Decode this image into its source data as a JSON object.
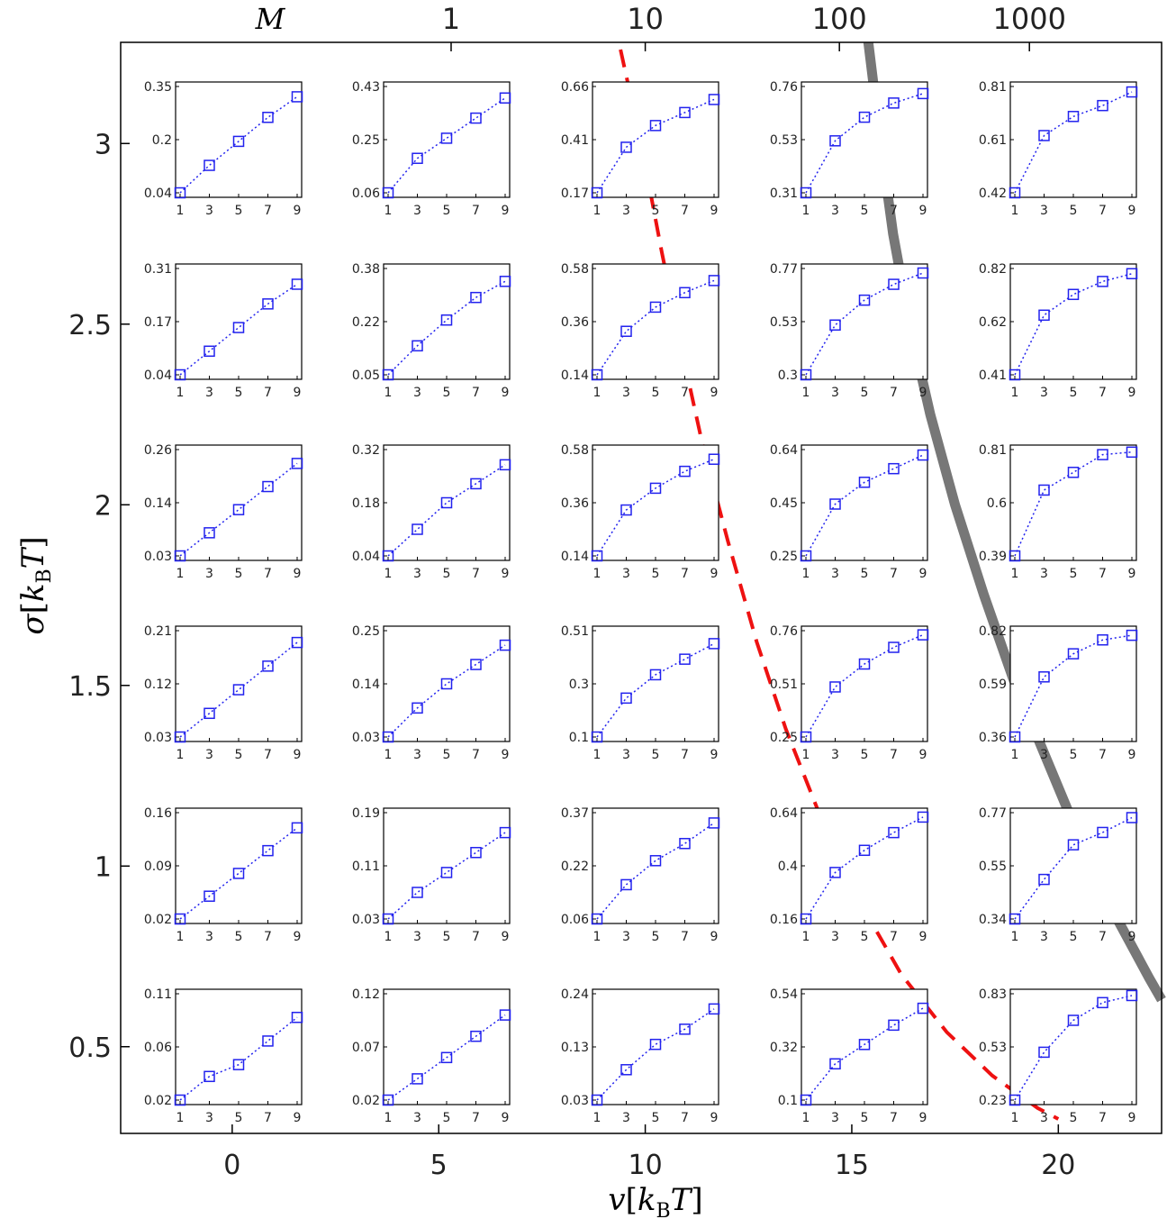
{
  "chart_data": {
    "type": "line",
    "main": {
      "xlabel": {
        "var": "v",
        "open": "[",
        "k": "k",
        "sub": "B",
        "T": "T",
        "close": "]"
      },
      "ylabel": {
        "var": "σ",
        "open": "[",
        "k": "k",
        "sub": "B",
        "T": "T",
        "close": "]"
      },
      "x_ticks": [
        0,
        5,
        10,
        15,
        20
      ],
      "x_tick_labels": [
        "0",
        "5",
        "10",
        "15",
        "20"
      ],
      "y_ticks": [
        0.5,
        1,
        1.5,
        2,
        2.5,
        3
      ],
      "y_tick_labels": [
        "0.5",
        "1",
        "1.5",
        "2",
        "2.5",
        "3"
      ],
      "xlim": [
        -2.7,
        22.5
      ],
      "ylim": [
        0.26,
        3.28
      ],
      "top_axis": {
        "label": "M",
        "tick_x": [
          5.3,
          10,
          14.7,
          19.3
        ],
        "tick_labels": [
          "1",
          "10",
          "100",
          "1000"
        ]
      },
      "curves": [
        {
          "style": "dashed",
          "color": "#ee1111",
          "x": [
            9.4,
            9.9,
            10.4,
            10.9,
            11.4,
            12.0,
            12.7,
            13.4,
            14.3,
            15.2,
            16.2,
            17.3,
            18.4,
            19.5,
            20.0
          ],
          "y": [
            3.26,
            3.0,
            2.7,
            2.42,
            2.16,
            1.9,
            1.62,
            1.38,
            1.12,
            0.9,
            0.7,
            0.54,
            0.42,
            0.33,
            0.3
          ]
        },
        {
          "style": "solid",
          "color": "#777777",
          "x": [
            15.4,
            15.7,
            16.0,
            16.4,
            16.9,
            17.5,
            18.2,
            18.9,
            19.7,
            20.5,
            21.3,
            22.2,
            22.5
          ],
          "y": [
            3.28,
            3.0,
            2.75,
            2.5,
            2.25,
            2.0,
            1.75,
            1.52,
            1.3,
            1.08,
            0.88,
            0.69,
            0.63
          ]
        }
      ]
    },
    "insets": {
      "x_ticks": [
        1,
        3,
        5,
        7,
        9
      ],
      "x_tick_labels": [
        "1",
        "3",
        "5",
        "7",
        "9"
      ],
      "marker": "square",
      "line": "dotted",
      "color": "#2222ee",
      "v_values": [
        0,
        5,
        10,
        15,
        20
      ],
      "sigma_rows": [
        3,
        2.5,
        2,
        1.5,
        1,
        0.5
      ],
      "panels": [
        [
          {
            "ylim": [
              0.04,
              0.35
            ],
            "yticks": [
              "0.04",
              "0.2",
              "0.35"
            ],
            "y": [
              0.04,
              0.12,
              0.19,
              0.26,
              0.32
            ]
          },
          {
            "ylim": [
              0.06,
              0.43
            ],
            "yticks": [
              "0.06",
              "0.25",
              "0.43"
            ],
            "y": [
              0.06,
              0.18,
              0.25,
              0.32,
              0.39
            ]
          },
          {
            "ylim": [
              0.17,
              0.66
            ],
            "yticks": [
              "0.17",
              "0.41",
              "0.66"
            ],
            "y": [
              0.17,
              0.38,
              0.48,
              0.54,
              0.6
            ]
          },
          {
            "ylim": [
              0.31,
              0.76
            ],
            "yticks": [
              "0.31",
              "0.53",
              "0.76"
            ],
            "y": [
              0.31,
              0.53,
              0.63,
              0.69,
              0.73
            ]
          },
          {
            "ylim": [
              0.42,
              0.81
            ],
            "yticks": [
              "0.42",
              "0.61",
              "0.81"
            ],
            "y": [
              0.42,
              0.63,
              0.7,
              0.74,
              0.79
            ]
          }
        ],
        [
          {
            "ylim": [
              0.04,
              0.31
            ],
            "yticks": [
              "0.04",
              "0.17",
              "0.31"
            ],
            "y": [
              0.04,
              0.1,
              0.16,
              0.22,
              0.27
            ]
          },
          {
            "ylim": [
              0.05,
              0.38
            ],
            "yticks": [
              "0.05",
              "0.22",
              "0.38"
            ],
            "y": [
              0.05,
              0.14,
              0.22,
              0.29,
              0.34
            ]
          },
          {
            "ylim": [
              0.14,
              0.58
            ],
            "yticks": [
              "0.14",
              "0.36",
              "0.58"
            ],
            "y": [
              0.14,
              0.32,
              0.42,
              0.48,
              0.53
            ]
          },
          {
            "ylim": [
              0.3,
              0.77
            ],
            "yticks": [
              "0.3",
              "0.53",
              "0.77"
            ],
            "y": [
              0.3,
              0.52,
              0.63,
              0.7,
              0.75
            ]
          },
          {
            "ylim": [
              0.41,
              0.82
            ],
            "yticks": [
              "0.41",
              "0.62",
              "0.82"
            ],
            "y": [
              0.41,
              0.64,
              0.72,
              0.77,
              0.8
            ]
          }
        ],
        [
          {
            "ylim": [
              0.03,
              0.26
            ],
            "yticks": [
              "0.03",
              "0.14",
              "0.26"
            ],
            "y": [
              0.03,
              0.08,
              0.13,
              0.18,
              0.23
            ]
          },
          {
            "ylim": [
              0.04,
              0.32
            ],
            "yticks": [
              "0.04",
              "0.18",
              "0.32"
            ],
            "y": [
              0.04,
              0.11,
              0.18,
              0.23,
              0.28
            ]
          },
          {
            "ylim": [
              0.14,
              0.58
            ],
            "yticks": [
              "0.14",
              "0.36",
              "0.58"
            ],
            "y": [
              0.14,
              0.33,
              0.42,
              0.49,
              0.54
            ]
          },
          {
            "ylim": [
              0.25,
              0.64
            ],
            "yticks": [
              "0.25",
              "0.45",
              "0.64"
            ],
            "y": [
              0.25,
              0.44,
              0.52,
              0.57,
              0.62
            ]
          },
          {
            "ylim": [
              0.39,
              0.81
            ],
            "yticks": [
              "0.39",
              "0.6",
              "0.81"
            ],
            "y": [
              0.39,
              0.65,
              0.72,
              0.79,
              0.8
            ]
          }
        ],
        [
          {
            "ylim": [
              0.03,
              0.21
            ],
            "yticks": [
              "0.03",
              "0.12",
              "0.21"
            ],
            "y": [
              0.03,
              0.07,
              0.11,
              0.15,
              0.19
            ]
          },
          {
            "ylim": [
              0.03,
              0.25
            ],
            "yticks": [
              "0.03",
              "0.14",
              "0.25"
            ],
            "y": [
              0.03,
              0.09,
              0.14,
              0.18,
              0.22
            ]
          },
          {
            "ylim": [
              0.1,
              0.51
            ],
            "yticks": [
              "0.1",
              "0.3",
              "0.51"
            ],
            "y": [
              0.1,
              0.25,
              0.34,
              0.4,
              0.46
            ]
          },
          {
            "ylim": [
              0.25,
              0.76
            ],
            "yticks": [
              "0.25",
              "0.51",
              "0.76"
            ],
            "y": [
              0.25,
              0.49,
              0.6,
              0.68,
              0.74
            ]
          },
          {
            "ylim": [
              0.36,
              0.82
            ],
            "yticks": [
              "0.36",
              "0.59",
              "0.82"
            ],
            "y": [
              0.36,
              0.62,
              0.72,
              0.78,
              0.8
            ]
          }
        ],
        [
          {
            "ylim": [
              0.02,
              0.16
            ],
            "yticks": [
              "0.02",
              "0.09",
              "0.16"
            ],
            "y": [
              0.02,
              0.05,
              0.08,
              0.11,
              0.14
            ]
          },
          {
            "ylim": [
              0.03,
              0.19
            ],
            "yticks": [
              "0.03",
              "0.11",
              "0.19"
            ],
            "y": [
              0.03,
              0.07,
              0.1,
              0.13,
              0.16
            ]
          },
          {
            "ylim": [
              0.06,
              0.37
            ],
            "yticks": [
              "0.06",
              "0.22",
              "0.37"
            ],
            "y": [
              0.06,
              0.16,
              0.23,
              0.28,
              0.34
            ]
          },
          {
            "ylim": [
              0.16,
              0.64
            ],
            "yticks": [
              "0.16",
              "0.4",
              "0.64"
            ],
            "y": [
              0.16,
              0.37,
              0.47,
              0.55,
              0.62
            ]
          },
          {
            "ylim": [
              0.34,
              0.77
            ],
            "yticks": [
              "0.34",
              "0.55",
              "0.77"
            ],
            "y": [
              0.34,
              0.5,
              0.64,
              0.69,
              0.75
            ]
          }
        ],
        [
          {
            "ylim": [
              0.02,
              0.11
            ],
            "yticks": [
              "0.02",
              "0.06",
              "0.11"
            ],
            "y": [
              0.02,
              0.04,
              0.05,
              0.07,
              0.09
            ]
          },
          {
            "ylim": [
              0.02,
              0.12
            ],
            "yticks": [
              "0.02",
              "0.07",
              "0.12"
            ],
            "y": [
              0.02,
              0.04,
              0.06,
              0.08,
              0.1
            ]
          },
          {
            "ylim": [
              0.03,
              0.24
            ],
            "yticks": [
              "0.03",
              "0.13",
              "0.24"
            ],
            "y": [
              0.03,
              0.09,
              0.14,
              0.17,
              0.21
            ]
          },
          {
            "ylim": [
              0.1,
              0.54
            ],
            "yticks": [
              "0.1",
              "0.32",
              "0.54"
            ],
            "y": [
              0.1,
              0.25,
              0.33,
              0.41,
              0.48
            ]
          },
          {
            "ylim": [
              0.23,
              0.83
            ],
            "yticks": [
              "0.23",
              "0.53",
              "0.83"
            ],
            "y": [
              0.23,
              0.5,
              0.68,
              0.78,
              0.82
            ]
          }
        ]
      ]
    }
  }
}
